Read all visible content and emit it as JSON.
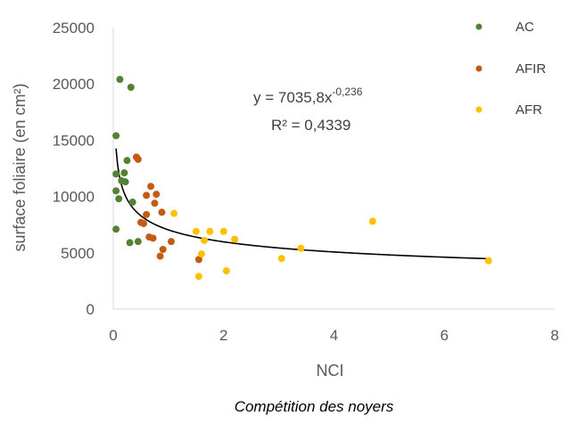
{
  "chart_data": {
    "type": "scatter",
    "xlabel": "NCI",
    "ylabel": "surface foliaire (en cm²)",
    "caption": "Compétition des noyers",
    "xlim": [
      0,
      8
    ],
    "ylim": [
      0,
      25000
    ],
    "x_ticks": [
      "0",
      "2",
      "4",
      "6",
      "8"
    ],
    "y_ticks": [
      "0",
      "5000",
      "10000",
      "15000",
      "20000",
      "25000"
    ],
    "grid": false,
    "legend_position": "top-right",
    "trendline": {
      "equation_prefix": "y = 7035,8x",
      "equation_exponent": "-0,236",
      "r2_label": "R² = 0,4339",
      "a": 7035.8,
      "b": -0.236,
      "x_range": [
        0.05,
        6.8
      ],
      "color": "#000000"
    },
    "series": [
      {
        "name": "AC",
        "color": "#548235",
        "points": [
          [
            0.05,
            7100
          ],
          [
            0.05,
            15400
          ],
          [
            0.05,
            12000
          ],
          [
            0.05,
            10500
          ],
          [
            0.1,
            9800
          ],
          [
            0.12,
            20400
          ],
          [
            0.15,
            11400
          ],
          [
            0.2,
            12100
          ],
          [
            0.22,
            11300
          ],
          [
            0.25,
            13200
          ],
          [
            0.3,
            5900
          ],
          [
            0.32,
            19700
          ],
          [
            0.35,
            9500
          ],
          [
            0.45,
            6000
          ]
        ]
      },
      {
        "name": "AFIR",
        "color": "#C55A11",
        "points": [
          [
            0.42,
            13500
          ],
          [
            0.45,
            13300
          ],
          [
            0.5,
            7700
          ],
          [
            0.55,
            7600
          ],
          [
            0.6,
            8400
          ],
          [
            0.6,
            10100
          ],
          [
            0.65,
            6400
          ],
          [
            0.68,
            10900
          ],
          [
            0.72,
            6300
          ],
          [
            0.75,
            9400
          ],
          [
            0.78,
            10200
          ],
          [
            0.85,
            4700
          ],
          [
            0.88,
            8600
          ],
          [
            0.9,
            5300
          ],
          [
            1.05,
            6000
          ],
          [
            1.55,
            4400
          ]
        ]
      },
      {
        "name": "AFR",
        "color": "#FFC000",
        "points": [
          [
            1.1,
            8500
          ],
          [
            1.5,
            6900
          ],
          [
            1.55,
            2900
          ],
          [
            1.6,
            4900
          ],
          [
            1.65,
            6100
          ],
          [
            1.75,
            6900
          ],
          [
            2.0,
            6900
          ],
          [
            2.05,
            3400
          ],
          [
            2.2,
            6200
          ],
          [
            3.05,
            4500
          ],
          [
            3.4,
            5400
          ],
          [
            4.7,
            7800
          ],
          [
            6.8,
            4300
          ]
        ]
      }
    ]
  }
}
